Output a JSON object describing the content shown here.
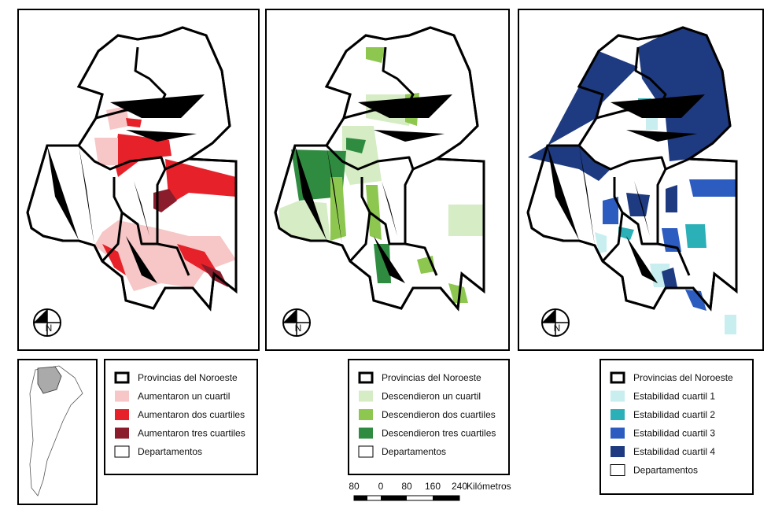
{
  "maps": [
    {
      "north": "N"
    },
    {
      "north": "N"
    },
    {
      "north": "N"
    }
  ],
  "legends": [
    {
      "items": [
        {
          "label": "Provincias del Noroeste",
          "style": "province"
        },
        {
          "label": "Aumentaron un cuartil",
          "color": "#f7c6c6"
        },
        {
          "label": "Aumentaron dos cuartiles",
          "color": "#e62129"
        },
        {
          "label": "Aumentaron tres cuartiles",
          "color": "#8a1c2b"
        },
        {
          "label": "Departamentos",
          "color": "#ffffff"
        }
      ]
    },
    {
      "items": [
        {
          "label": "Provincias del Noroeste",
          "style": "province"
        },
        {
          "label": "Descendieron un cuartil",
          "color": "#d5ecc4"
        },
        {
          "label": "Descendieron dos cuartiles",
          "color": "#8dc74f"
        },
        {
          "label": "Descendieron tres cuartiles",
          "color": "#2f8b3f"
        },
        {
          "label": "Departamentos",
          "color": "#ffffff"
        }
      ]
    },
    {
      "items": [
        {
          "label": "Provincias del Noroeste",
          "style": "province"
        },
        {
          "label": "Estabilidad cuartil 1",
          "color": "#c8eef0"
        },
        {
          "label": "Estabilidad cuartil 2",
          "color": "#2bb0b8"
        },
        {
          "label": "Estabilidad cuartil 3",
          "color": "#2c5cc0"
        },
        {
          "label": "Estabilidad cuartil 4",
          "color": "#1e3a80"
        },
        {
          "label": "Departamentos",
          "color": "#ffffff"
        }
      ]
    }
  ],
  "scale": {
    "ticks": [
      "80",
      "0",
      "80",
      "160",
      "240"
    ],
    "unit": "Kilómetros"
  }
}
